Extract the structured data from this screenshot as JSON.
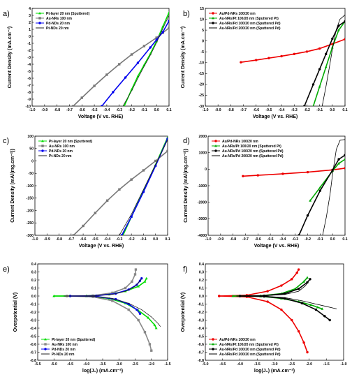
{
  "chart_data": [
    {
      "panel": "a)",
      "type": "line",
      "xlabel": "Voltage (V vs. RHE)",
      "ylabel": "Current Density (mA.cm⁻²)",
      "xlim": [
        -1.0,
        0.1
      ],
      "ylim": [
        -10,
        4
      ],
      "xticks": [
        "-1.0",
        "-0.9",
        "-0.8",
        "-0.7",
        "-0.6",
        "-0.5",
        "-0.4",
        "-0.3",
        "-0.2",
        "-0.1",
        "0.0",
        "0.1"
      ],
      "yticks": [
        "-10",
        "-9",
        "-8",
        "-7",
        "-6",
        "-5",
        "-4",
        "-3",
        "-2",
        "-1",
        "0",
        "1",
        "2",
        "3",
        "4"
      ],
      "legend_position": "top-left",
      "series": [
        {
          "name": "Pt-layer 20 nm (Sputtered)",
          "color": "#00dd00",
          "marker": "triangle",
          "x": [
            -0.26,
            -0.2,
            -0.15,
            -0.1,
            -0.05,
            0.0,
            0.05,
            0.1
          ],
          "y": [
            -10,
            -7.6,
            -5.7,
            -4.1,
            -2.5,
            -0.7,
            1.4,
            3.4
          ]
        },
        {
          "name": "Au-NRs 100 nm",
          "color": "#777777",
          "marker": "square",
          "x": [
            -0.67,
            -0.6,
            -0.5,
            -0.4,
            -0.3,
            -0.2,
            -0.1,
            0.0,
            0.05,
            0.1
          ],
          "y": [
            -10,
            -8.8,
            -7.1,
            -5.5,
            -4.0,
            -2.6,
            -1.4,
            -0.2,
            0.5,
            1.2
          ]
        },
        {
          "name": "Pd-NDs 20 nm",
          "color": "#0000ee",
          "marker": "circle",
          "x": [
            -0.44,
            -0.35,
            -0.25,
            -0.15,
            -0.05,
            0.0,
            0.05,
            0.1
          ],
          "y": [
            -10,
            -8.0,
            -5.9,
            -3.8,
            -1.6,
            -0.5,
            0.6,
            2.2
          ]
        },
        {
          "name": "Pt-NDs 20 nm",
          "color": "#222222",
          "marker": "none",
          "x": [
            -0.27,
            -0.2,
            -0.15,
            -0.1,
            -0.05,
            0.0,
            0.05,
            0.1
          ],
          "y": [
            -10,
            -7.8,
            -6.0,
            -4.3,
            -2.7,
            -0.9,
            1.1,
            3.0
          ]
        }
      ]
    },
    {
      "panel": "b)",
      "type": "line",
      "xlabel": "Voltage (V vs. RHE)",
      "ylabel": "Current Density (mA.cm⁻²)",
      "xlim": [
        -1.0,
        0.1
      ],
      "ylim": [
        -30,
        15
      ],
      "xticks": [
        "-1.0",
        "-0.9",
        "-0.8",
        "-0.7",
        "-0.6",
        "-0.5",
        "-0.4",
        "-0.3",
        "-0.2",
        "-0.1",
        "0.0",
        "0.1"
      ],
      "yticks": [
        "-30",
        "-25",
        "-20",
        "-15",
        "-10",
        "-5",
        "0",
        "5",
        "10",
        "15"
      ],
      "legend_position": "top-left",
      "series": [
        {
          "name": "Au/Pd-NRs 100/20 nm",
          "color": "#ee0000",
          "marker": "circle",
          "x": [
            -0.72,
            -0.6,
            -0.5,
            -0.4,
            -0.3,
            -0.2,
            -0.1,
            0.0,
            0.1
          ],
          "y": [
            -9.8,
            -8.8,
            -7.9,
            -7.0,
            -6.0,
            -4.9,
            -3.5,
            -1.4,
            0.8
          ]
        },
        {
          "name": "Au-NRs/Pt 100/20 nm (Sputtered Pt)",
          "color": "#00aa00",
          "marker": "triangle",
          "x": [
            -0.15,
            -0.1,
            -0.05,
            0.0,
            0.05,
            0.1
          ],
          "y": [
            -30,
            -21,
            -12,
            -3,
            5,
            9
          ]
        },
        {
          "name": "Au-NRs/Pd 100/20 nm (Sputtered Pd)",
          "color": "#000000",
          "marker": "circle",
          "x": [
            -0.22,
            -0.15,
            -0.1,
            -0.05,
            0.0,
            0.05,
            0.1
          ],
          "y": [
            -30,
            -20,
            -13,
            -6,
            1,
            7,
            9
          ]
        },
        {
          "name": "Au-NRs/Pd 200/20 nm (Sputtered Pd)",
          "color": "#000000",
          "marker": "none",
          "x": [
            -0.08,
            -0.05,
            -0.02,
            0.0,
            0.03,
            0.06,
            0.1
          ],
          "y": [
            -30,
            -21,
            -11,
            -4,
            5,
            10,
            12
          ]
        }
      ]
    },
    {
      "panel": "c)",
      "type": "line",
      "xlabel": "Voltage (V vs. RHE)",
      "ylabel": "Current Density (mA/(mg.cm⁻²))",
      "xlim": [
        -1.0,
        0.1
      ],
      "ylim": [
        -300,
        100
      ],
      "xticks": [
        "-1.0",
        "-0.9",
        "-0.8",
        "-0.7",
        "-0.6",
        "-0.5",
        "-0.4",
        "-0.3",
        "-0.2",
        "-0.1",
        "0.0",
        "0.1"
      ],
      "yticks": [
        "-300",
        "-250",
        "-200",
        "-150",
        "-100",
        "-50",
        "0",
        "50",
        "100"
      ],
      "legend_position": "top-left",
      "series": [
        {
          "name": "Pt-layer 20 nm (Sputtered)",
          "color": "#00dd00",
          "marker": "triangle",
          "x": [
            -0.27,
            -0.2,
            -0.1,
            0.0,
            0.1
          ],
          "y": [
            -300,
            -225,
            -120,
            -15,
            95
          ]
        },
        {
          "name": "Au-NRs 100 nm",
          "color": "#777777",
          "marker": "square",
          "x": [
            -0.68,
            -0.6,
            -0.5,
            -0.4,
            -0.3,
            -0.2,
            -0.1,
            0.0,
            0.1
          ],
          "y": [
            -300,
            -262,
            -210,
            -160,
            -115,
            -75,
            -38,
            0,
            40
          ]
        },
        {
          "name": "Pd-NDs 20 nm",
          "color": "#0000ee",
          "marker": "circle",
          "x": [
            -0.28,
            -0.2,
            -0.1,
            0.0,
            0.1
          ],
          "y": [
            -300,
            -225,
            -125,
            -20,
            90
          ]
        },
        {
          "name": "Pt-NDs 20 nm",
          "color": "#222222",
          "marker": "none",
          "x": [
            -0.3,
            -0.2,
            -0.1,
            0.0,
            0.1
          ],
          "y": [
            -300,
            -215,
            -115,
            -15,
            85
          ]
        }
      ]
    },
    {
      "panel": "d)",
      "type": "line",
      "xlabel": "Voltage (V vs. RHE)",
      "ylabel": "Current Density (mA/(mg.cm⁻²))",
      "xlim": [
        -1.0,
        0.1
      ],
      "ylim": [
        -4000,
        2000
      ],
      "xticks": [
        "-1.0",
        "-0.9",
        "-0.8",
        "-0.7",
        "-0.6",
        "-0.5",
        "-0.4",
        "-0.3",
        "-0.2",
        "-0.1",
        "0.0",
        "0.1"
      ],
      "yticks": [
        "-4000",
        "-3000",
        "-2000",
        "-1000",
        "0",
        "1000",
        "2000"
      ],
      "legend_position": "top-left",
      "series": [
        {
          "name": "Au/Pd-NRs 100/20 nm",
          "color": "#ee0000",
          "marker": "circle",
          "x": [
            -0.72,
            -0.6,
            -0.4,
            -0.2,
            0.0,
            0.1
          ],
          "y": [
            -420,
            -370,
            -280,
            -180,
            -40,
            60
          ]
        },
        {
          "name": "Au-NRs/Pt 100/20 nm (Sputtered Pt)",
          "color": "#00aa00",
          "marker": "triangle",
          "x": [
            -0.18,
            -0.1,
            0.0,
            0.05,
            0.1
          ],
          "y": [
            -1900,
            -1100,
            -100,
            350,
            600
          ]
        },
        {
          "name": "Au-NRs/Pd 100/20 nm (Sputtered Pd)",
          "color": "#000000",
          "marker": "circle",
          "x": [
            -0.27,
            -0.2,
            -0.1,
            0.0,
            0.05,
            0.1
          ],
          "y": [
            -4000,
            -2800,
            -1300,
            -50,
            600,
            850
          ]
        },
        {
          "name": "Au-NRs/Pd 200/20 nm (Sputtered Pd)",
          "color": "#000000",
          "marker": "none",
          "x": [
            -0.08,
            -0.05,
            -0.02,
            0.0,
            0.03,
            0.06,
            0.1
          ],
          "y": [
            -4000,
            -2900,
            -1500,
            -300,
            1200,
            1750,
            1800
          ]
        }
      ]
    },
    {
      "panel": "e)",
      "type": "line",
      "xlabel": "log(J₀) (mA.cm⁻²)",
      "ylabel": "Overpotential (V)",
      "xlim": [
        -5.5,
        -1.5
      ],
      "ylim": [
        -0.8,
        0.4
      ],
      "xticks": [
        "-5.5",
        "-5.0",
        "-4.5",
        "-4.0",
        "-3.5",
        "-3.0",
        "-2.5",
        "-2.0",
        "-1.5"
      ],
      "yticks": [
        "-0.8",
        "-0.7",
        "-0.6",
        "-0.5",
        "-0.4",
        "-0.3",
        "-0.2",
        "-0.1",
        "0.0",
        "0.1",
        "0.2",
        "0.3",
        "0.4"
      ],
      "legend_position": "bottom-left",
      "series": [
        {
          "name": "Pt-layer 20 nm (Sputtered)",
          "color": "#00dd00",
          "marker": "triangle",
          "branches": [
            {
              "x": [
                -5.0,
                -4.0,
                -3.3,
                -2.8,
                -2.4,
                -2.2,
                -2.15
              ],
              "y": [
                0,
                0.003,
                0.02,
                0.06,
                0.12,
                0.18,
                0.22
              ]
            },
            {
              "x": [
                -5.0,
                -4.0,
                -3.3,
                -2.8,
                -2.4,
                -2.1,
                -1.9,
                -1.85
              ],
              "y": [
                0,
                -0.003,
                -0.03,
                -0.09,
                -0.18,
                -0.27,
                -0.36,
                -0.4
              ]
            }
          ]
        },
        {
          "name": "Au-NRs 100 nm",
          "color": "#888888",
          "marker": "square",
          "branches": [
            {
              "x": [
                -4.6,
                -3.8,
                -3.2,
                -2.8,
                -2.6,
                -2.5,
                -2.48
              ],
              "y": [
                0,
                0.005,
                0.04,
                0.1,
                0.18,
                0.27,
                0.33
              ]
            },
            {
              "x": [
                -4.6,
                -3.8,
                -3.2,
                -2.7,
                -2.4,
                -2.2,
                -2.05,
                -2.0
              ],
              "y": [
                0,
                -0.01,
                -0.06,
                -0.17,
                -0.3,
                -0.45,
                -0.6,
                -0.68
              ]
            }
          ]
        },
        {
          "name": "Pd-NDs 20 nm",
          "color": "#0000ee",
          "marker": "circle",
          "branches": [
            {
              "x": [
                -4.5,
                -3.7,
                -3.1,
                -2.7,
                -2.45,
                -2.35,
                -2.3
              ],
              "y": [
                0,
                0.004,
                0.03,
                0.08,
                0.14,
                0.19,
                0.22
              ]
            },
            {
              "x": [
                -4.5,
                -3.7,
                -3.1,
                -2.7,
                -2.45,
                -2.35
              ],
              "y": [
                0,
                -0.004,
                -0.04,
                -0.1,
                -0.17,
                -0.22
              ]
            }
          ]
        },
        {
          "name": "Pt-NDs 20 nm",
          "color": "#222222",
          "marker": "none",
          "branches": [
            {
              "x": [
                -4.7,
                -3.8,
                -3.2,
                -2.8,
                -2.5,
                -2.35,
                -2.3
              ],
              "y": [
                0,
                0.003,
                0.02,
                0.06,
                0.12,
                0.19,
                0.22
              ]
            },
            {
              "x": [
                -4.7,
                -3.8,
                -3.2,
                -2.7,
                -2.3,
                -2.0,
                -1.8,
                -1.72
              ],
              "y": [
                0,
                -0.004,
                -0.03,
                -0.09,
                -0.17,
                -0.26,
                -0.34,
                -0.38
              ]
            }
          ]
        }
      ]
    },
    {
      "panel": "f)",
      "type": "line",
      "xlabel": "log(J₀) (mA.cm⁻²)",
      "ylabel": "Overpotential (V)",
      "xlim": [
        -5.0,
        -1.0
      ],
      "ylim": [
        -0.8,
        0.4
      ],
      "xticks": [
        "-5.0",
        "-4.5",
        "-4.0",
        "-3.5",
        "-3.0",
        "-2.5",
        "-2.0",
        "-1.5",
        "-1.0"
      ],
      "yticks": [
        "-0.8",
        "-0.7",
        "-0.6",
        "-0.5",
        "-0.4",
        "-0.3",
        "-0.2",
        "-0.1",
        "0.0",
        "0.1",
        "0.2",
        "0.3",
        "0.4"
      ],
      "legend_position": "bottom-left",
      "series": [
        {
          "name": "Au/Pd-NRs 100/20 nm",
          "color": "#ee0000",
          "marker": "circle",
          "branches": [
            {
              "x": [
                -4.6,
                -3.8,
                -3.2,
                -2.8,
                -2.5,
                -2.35,
                -2.3
              ],
              "y": [
                0,
                0.01,
                0.06,
                0.13,
                0.21,
                0.29,
                0.33
              ]
            },
            {
              "x": [
                -4.6,
                -3.8,
                -3.2,
                -2.8,
                -2.5,
                -2.3,
                -2.15,
                -2.05
              ],
              "y": [
                0,
                -0.01,
                -0.07,
                -0.17,
                -0.3,
                -0.44,
                -0.58,
                -0.7
              ]
            }
          ]
        },
        {
          "name": "Au-NRs/Pt 100/20 nm (Sputtered Pt)",
          "color": "#00aa00",
          "marker": "triangle",
          "branches": [
            {
              "x": [
                -4.2,
                -3.4,
                -2.8,
                -2.4,
                -2.15,
                -2.05
              ],
              "y": [
                0,
                0.004,
                0.03,
                0.09,
                0.18,
                0.23
              ]
            },
            {
              "x": [
                -4.2,
                -3.4,
                -2.8,
                -2.3,
                -1.95,
                -1.75,
                -1.62
              ],
              "y": [
                0,
                -0.004,
                -0.03,
                -0.07,
                -0.11,
                -0.14,
                -0.16
              ]
            }
          ]
        },
        {
          "name": "Au-NRs/Pd 100/20 nm (Sputtered Pd)",
          "color": "#000000",
          "marker": "circle",
          "branches": [
            {
              "x": [
                -4.0,
                -3.3,
                -2.7,
                -2.3,
                -2.05,
                -1.97
              ],
              "y": [
                0,
                0.004,
                0.03,
                0.09,
                0.17,
                0.21
              ]
            },
            {
              "x": [
                -4.0,
                -3.3,
                -2.7,
                -2.2,
                -1.8,
                -1.55,
                -1.4
              ],
              "y": [
                0,
                -0.005,
                -0.03,
                -0.09,
                -0.17,
                -0.25,
                -0.3
              ]
            }
          ]
        },
        {
          "name": "Au-NRs/Pd 200/20 nm (Sputtered Pd)",
          "color": "#000000",
          "marker": "none",
          "branches": [
            {
              "x": [
                -4.1,
                -3.3,
                -2.7,
                -2.3,
                -2.1,
                -2.0
              ],
              "y": [
                0,
                0.003,
                0.02,
                0.06,
                0.13,
                0.2
              ]
            },
            {
              "x": [
                -4.1,
                -3.3,
                -2.7,
                -2.2,
                -1.8,
                -1.5,
                -1.3,
                -1.2
              ],
              "y": [
                0,
                -0.002,
                -0.02,
                -0.06,
                -0.1,
                -0.13,
                -0.15,
                -0.16
              ]
            }
          ]
        }
      ]
    }
  ]
}
